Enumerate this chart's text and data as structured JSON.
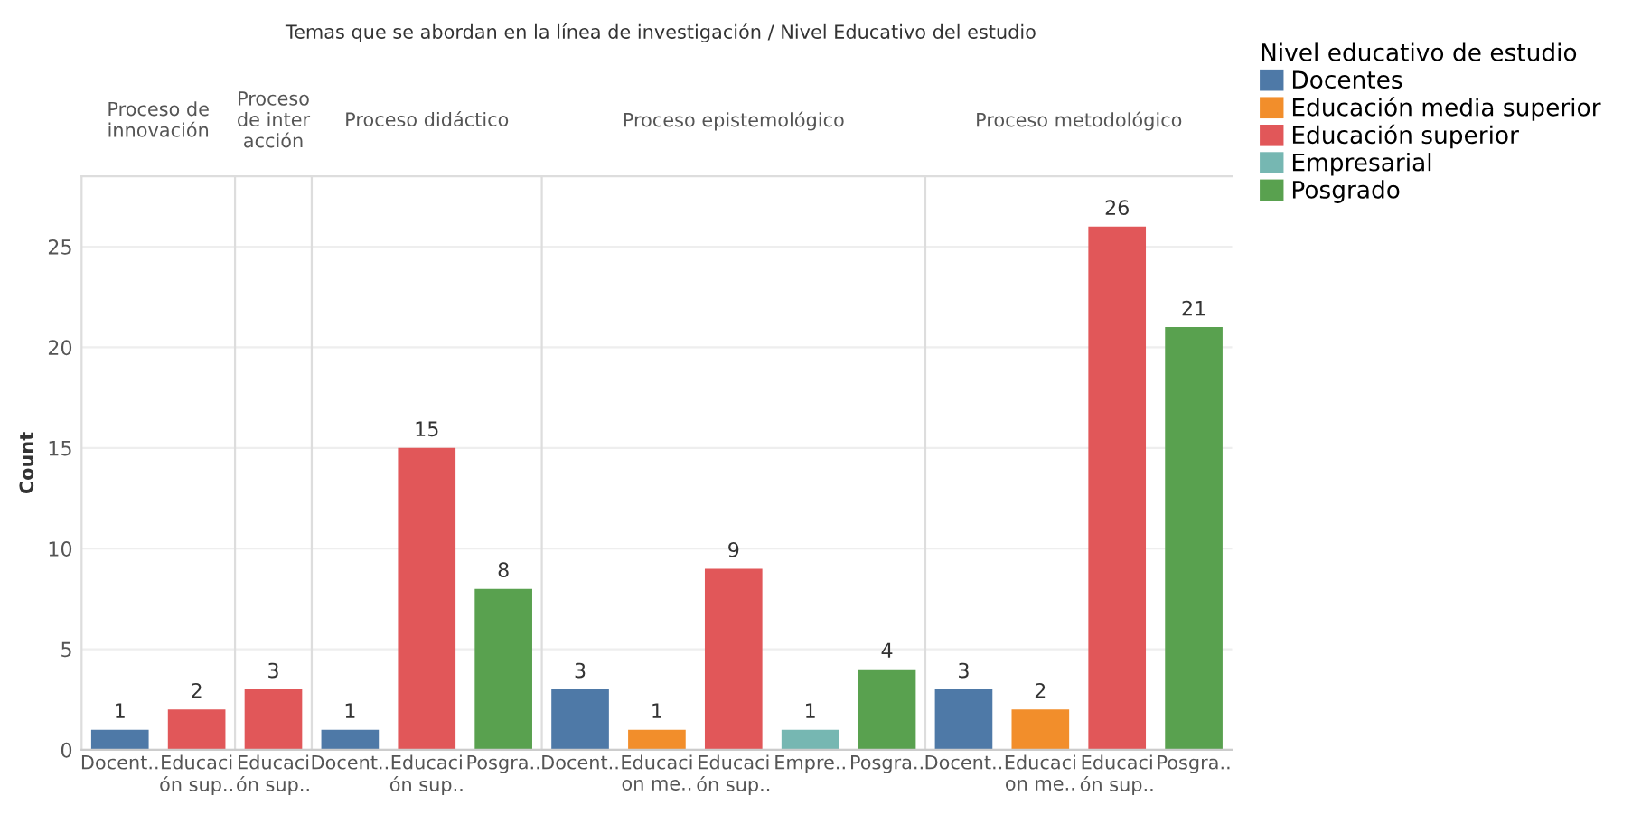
{
  "chart_data": [
    {
      "type": "bar",
      "title": "Proceso de\ninnovación",
      "ylabel": "Count",
      "annotations": [
        "Temas que se abordan en la línea de investigación / Nivel Educativo del estudio"
      ],
      "categories": [
        "Docent..",
        "Educaci\nón sup.."
      ],
      "stacked": true,
      "data_labels": true,
      "ylim": [
        0,
        28.5
      ],
      "yticks": [
        0,
        5,
        10,
        15,
        20,
        25
      ],
      "grid": "y",
      "series": [
        {
          "color": "#4e79a7",
          "values": [
            1,
            null
          ]
        },
        {
          "color": "#e15759",
          "values": [
            null,
            2
          ]
        }
      ]
    },
    {
      "type": "bar",
      "title": "Proceso\nde inter\nacción",
      "categories": [
        "Educaci\nón sup.."
      ],
      "stacked": true,
      "data_labels": true,
      "ylim": [
        0,
        28.5
      ],
      "yticks": [
        0,
        5,
        10,
        15,
        20,
        25
      ],
      "grid": "y",
      "tick_labels": "x",
      "series": [
        {
          "color": "#e15759",
          "values": [
            3
          ]
        }
      ]
    },
    {
      "type": "bar",
      "title": "Proceso didáctico",
      "categories": [
        "Docent..",
        "Educaci\nón sup..",
        "Posgra.."
      ],
      "stacked": true,
      "data_labels": true,
      "ylim": [
        0,
        28.5
      ],
      "yticks": [
        0,
        5,
        10,
        15,
        20,
        25
      ],
      "grid": "y",
      "tick_labels": "x",
      "series": [
        {
          "color": "#4e79a7",
          "values": [
            1,
            null,
            null
          ]
        },
        {
          "color": "#e15759",
          "values": [
            null,
            15,
            null
          ]
        },
        {
          "color": "#59a14f",
          "values": [
            null,
            null,
            8
          ]
        }
      ]
    },
    {
      "type": "bar",
      "title": "Proceso epistemológico",
      "categories": [
        "Docent..",
        "Educaci\non me..",
        "Educaci\nón sup..",
        "Empre..",
        "Posgra.."
      ],
      "stacked": true,
      "data_labels": true,
      "ylim": [
        0,
        28.5
      ],
      "yticks": [
        0,
        5,
        10,
        15,
        20,
        25
      ],
      "grid": "y",
      "tick_labels": "x",
      "series": [
        {
          "color": "#4e79a7",
          "values": [
            3,
            null,
            null,
            null,
            null
          ]
        },
        {
          "color": "#f28e2b",
          "values": [
            null,
            1,
            null,
            null,
            null
          ]
        },
        {
          "color": "#e15759",
          "values": [
            null,
            null,
            9,
            null,
            null
          ]
        },
        {
          "color": "#76b7b2",
          "values": [
            null,
            null,
            null,
            1,
            null
          ]
        },
        {
          "color": "#59a14f",
          "values": [
            null,
            null,
            null,
            null,
            4
          ]
        }
      ]
    },
    {
      "type": "bar",
      "title": "Proceso metodológico",
      "categories": [
        "Docent..",
        "Educaci\non me..",
        "Educaci\nón sup..",
        "Posgra.."
      ],
      "stacked": true,
      "data_labels": true,
      "ylim": [
        0,
        28.5
      ],
      "yticks": [
        0,
        5,
        10,
        15,
        20,
        25
      ],
      "grid": "y",
      "tick_labels": "x",
      "legend": "right",
      "legend_title": "Nivel educativo de estudio",
      "series": [
        {
          "name": "Docentes",
          "color": "#4e79a7",
          "values": [
            3,
            null,
            null,
            null
          ]
        },
        {
          "name": "Educación media superior",
          "color": "#f28e2b",
          "values": [
            null,
            2,
            null,
            null
          ]
        },
        {
          "name": "Educación superior",
          "color": "#e15759",
          "values": [
            null,
            null,
            26,
            null
          ]
        },
        {
          "name": "Empresarial",
          "color": "#76b7b2",
          "values": [
            null,
            null,
            null,
            null
          ]
        },
        {
          "name": "Posgrado",
          "color": "#59a14f",
          "values": [
            null,
            null,
            null,
            21
          ]
        }
      ]
    }
  ]
}
